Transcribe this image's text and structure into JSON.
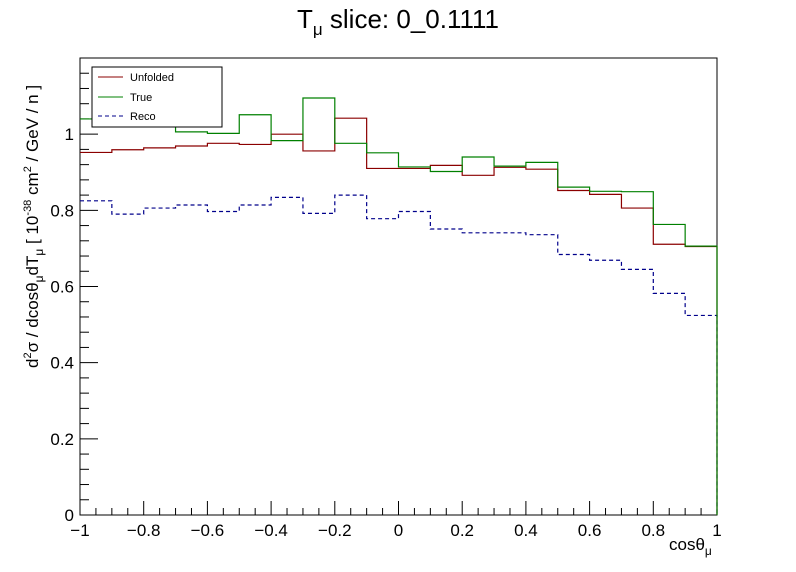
{
  "chart_data": {
    "type": "line",
    "title_main": "T",
    "title_sub": "μ",
    "title_rest": " slice: 0_0.1111",
    "xlabel_main": "cosθ",
    "xlabel_sub": "μ",
    "ylabel_parts": {
      "p1": "d",
      "p2": "2",
      "p3": "σ / dcosθ",
      "p4": "μ",
      "p5": "dT",
      "p6": "μ",
      "p7": " [ 10",
      "p8": "-38",
      "p9": " cm",
      "p10": "2",
      "p11": " / GeV / n ]"
    },
    "xlim": [
      -1,
      1
    ],
    "ylim": [
      0,
      1.2
    ],
    "x_ticks": [
      -1,
      -0.8,
      -0.6,
      -0.4,
      -0.2,
      0,
      0.2,
      0.4,
      0.6,
      0.8,
      1
    ],
    "x_tick_labels": [
      "−1",
      "−0.8",
      "−0.6",
      "−0.4",
      "−0.2",
      "0",
      "0.2",
      "0.4",
      "0.6",
      "0.8",
      "1"
    ],
    "y_ticks": [
      0,
      0.2,
      0.4,
      0.6,
      0.8,
      1
    ],
    "y_tick_labels": [
      "0",
      "0.2",
      "0.4",
      "0.6",
      "0.8",
      "1"
    ],
    "bin_edges": [
      -1,
      -0.9,
      -0.8,
      -0.7,
      -0.6,
      -0.5,
      -0.4,
      -0.3,
      -0.2,
      -0.1,
      0,
      0.1,
      0.2,
      0.3,
      0.4,
      0.5,
      0.6,
      0.7,
      0.8,
      0.9,
      1
    ],
    "series": [
      {
        "name": "Unfolded",
        "color": "#8b0000",
        "dashed": false,
        "values": [
          0.952,
          0.959,
          0.964,
          0.969,
          0.976,
          0.973,
          1.0,
          0.956,
          1.042,
          0.91,
          0.91,
          0.918,
          0.892,
          0.913,
          0.908,
          0.852,
          0.842,
          0.806,
          0.711,
          0.705
        ]
      },
      {
        "name": "True",
        "color": "#008000",
        "dashed": false,
        "values": [
          1.04,
          1.022,
          1.023,
          1.006,
          1.002,
          1.051,
          0.983,
          1.095,
          0.976,
          0.951,
          0.914,
          0.902,
          0.94,
          0.916,
          0.926,
          0.861,
          0.85,
          0.849,
          0.763,
          0.706
        ]
      },
      {
        "name": "Reco",
        "color": "#00008b",
        "dashed": true,
        "values": [
          0.825,
          0.79,
          0.806,
          0.814,
          0.797,
          0.814,
          0.834,
          0.792,
          0.84,
          0.778,
          0.797,
          0.751,
          0.741,
          0.741,
          0.736,
          0.684,
          0.669,
          0.645,
          0.582,
          0.524
        ]
      }
    ],
    "legend_placement": "top-left",
    "grid": false
  }
}
